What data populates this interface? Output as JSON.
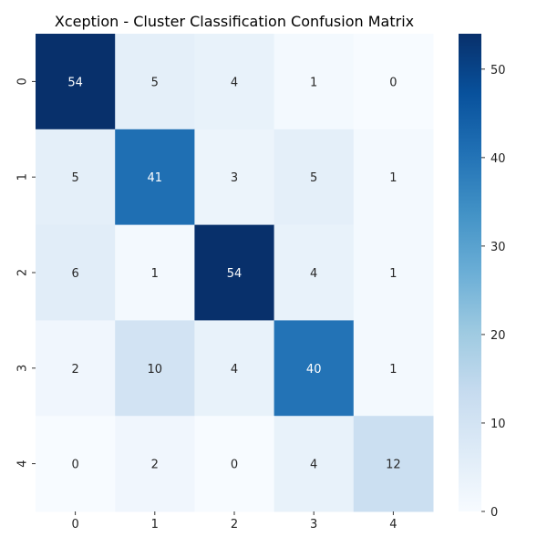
{
  "chart_data": {
    "type": "heatmap",
    "title": "Xception - Cluster Classification Confusion Matrix",
    "xlabel": "",
    "ylabel": "",
    "x_categories": [
      "0",
      "1",
      "2",
      "3",
      "4"
    ],
    "y_categories": [
      "0",
      "1",
      "2",
      "3",
      "4"
    ],
    "values": [
      [
        54,
        5,
        4,
        1,
        0
      ],
      [
        5,
        41,
        3,
        5,
        1
      ],
      [
        6,
        1,
        54,
        4,
        1
      ],
      [
        2,
        10,
        4,
        40,
        1
      ],
      [
        0,
        2,
        0,
        4,
        12
      ]
    ],
    "colorbar": {
      "range": [
        0,
        54
      ],
      "ticks": [
        0,
        10,
        20,
        30,
        40,
        50
      ],
      "colormap": "Blues"
    },
    "annotations": true,
    "grid": false
  }
}
